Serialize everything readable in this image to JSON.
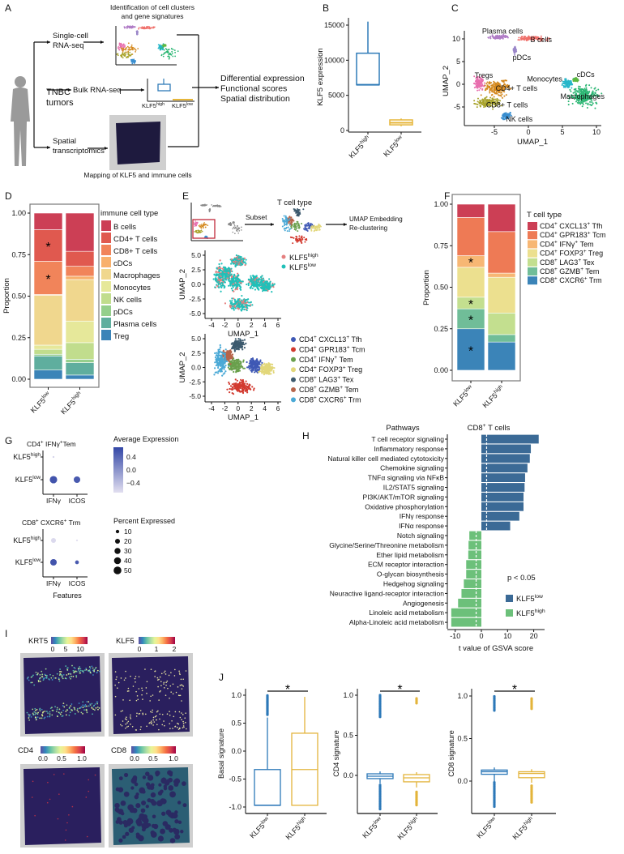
{
  "panel_labels": [
    "A",
    "B",
    "C",
    "D",
    "E",
    "F",
    "G",
    "H",
    "I",
    "J"
  ],
  "schematic": {
    "top_caption": [
      "Identification of cell clusters",
      "and gene signatures"
    ],
    "source": [
      "TNBC",
      "tumors"
    ],
    "scrna": [
      "Single-cell",
      "RNA-seq"
    ],
    "bulk": "Bulk RNA-seq",
    "spatial": [
      "Spatial",
      "transcriptomics"
    ],
    "outputs": [
      "Differential expression",
      "Functional scores",
      "Spatial distribution"
    ],
    "bottom_caption": "Mapping of KLF5 and immune cells",
    "bulk_labels": [
      [
        "KLF5",
        "high"
      ],
      [
        "KLF5",
        "low"
      ]
    ],
    "icons": [
      "person-silhouette-icon",
      "umap-thumbnail",
      "boxplot-thumbnail",
      "spatial-slide-thumbnail"
    ]
  },
  "chart_data": [
    {
      "type": "box",
      "ylabel": "KLF5 expression",
      "yticks": [
        "0",
        "5000",
        "10000",
        "15000"
      ],
      "categories": [
        [
          "KLF5",
          "high"
        ],
        [
          "KLF5",
          "low"
        ]
      ],
      "colors": [
        "#2f7bb8",
        "#e6b63a"
      ],
      "boxes": [
        {
          "min": 6500,
          "q1": 6500,
          "median": 6500,
          "q3": 11000,
          "max": 15500
        },
        {
          "min": 600,
          "q1": 800,
          "median": 1100,
          "q3": 1500,
          "max": 1700
        }
      ]
    },
    {
      "type": "scatter",
      "xlabel": "UMAP_1",
      "ylabel": "UMAP_2",
      "xticks": [
        "-5",
        "0",
        "5",
        "10"
      ],
      "yticks": [
        "-5",
        "0",
        "5",
        "10"
      ],
      "clusters": [
        {
          "name": "Plasma cells",
          "color": "#b07cc6",
          "center": [
            -4.3,
            10.4
          ],
          "spread": [
            1.2,
            0.35
          ]
        },
        {
          "name": "B cells",
          "color": "#ef6f6a",
          "center": [
            0.6,
            10.1
          ],
          "spread": [
            1.8,
            0.4
          ]
        },
        {
          "name": "pDCs",
          "color": "#9b87c9",
          "center": [
            -2.0,
            7.6
          ],
          "spread": [
            0.15,
            0.7
          ]
        },
        {
          "name": "Tregs",
          "color": "#e86fae",
          "center": [
            -7.2,
            0.3
          ],
          "spread": [
            0.6,
            1.1
          ]
        },
        {
          "name": "CD4+ T cells",
          "color": "#d4891f",
          "center": [
            -4.6,
            -0.8
          ],
          "spread": [
            1.6,
            1.4
          ]
        },
        {
          "name": "CD8+ T cells",
          "color": "#a8a32b",
          "center": [
            -6.0,
            -4.0
          ],
          "spread": [
            1.5,
            0.9
          ]
        },
        {
          "name": "NK cells",
          "color": "#3a8fd0",
          "center": [
            -3.3,
            -7.0
          ],
          "spread": [
            0.5,
            0.6
          ]
        },
        {
          "name": "Monocytes",
          "color": "#25b6c9",
          "center": [
            5.8,
            0.2
          ],
          "spread": [
            0.6,
            0.8
          ]
        },
        {
          "name": "cDCs",
          "color": "#5db840",
          "center": [
            7.0,
            1.0
          ],
          "spread": [
            0.3,
            0.3
          ]
        },
        {
          "name": "Macrophages",
          "color": "#2bb673",
          "center": [
            8.2,
            -2.6
          ],
          "spread": [
            1.7,
            1.8
          ]
        }
      ]
    },
    {
      "type": "bar",
      "stacked": true,
      "ylabel": "Proportion",
      "yticks": [
        "0.00",
        "0.25",
        "0.50",
        "0.75",
        "1.00"
      ],
      "categories": [
        [
          "KLF5",
          "low"
        ],
        [
          "KLF5",
          "high"
        ]
      ],
      "legend_title": "immune cell type",
      "series": [
        {
          "name": "Treg",
          "color": "#3b84b8",
          "values": [
            0.055,
            0.025
          ]
        },
        {
          "name": "Plasma cells",
          "color": "#5fae9e",
          "values": [
            0.085,
            0.075
          ]
        },
        {
          "name": "pDCs",
          "color": "#95cf8c",
          "values": [
            0.01,
            0.02
          ]
        },
        {
          "name": "NK cells",
          "color": "#c1dd8d",
          "values": [
            0.03,
            0.1
          ]
        },
        {
          "name": "Monocytes",
          "color": "#e6e89a",
          "values": [
            0.025,
            0.13
          ]
        },
        {
          "name": "Macrophages",
          "color": "#f0d78e",
          "values": [
            0.3,
            0.25
          ]
        },
        {
          "name": "cDCs",
          "color": "#f8b06c",
          "values": [
            0.005,
            0.02
          ]
        },
        {
          "name": "CD8+ T cells",
          "color": "#f1845a",
          "values": [
            0.2,
            0.06
          ]
        },
        {
          "name": "CD4+ T cells",
          "color": "#e0594f",
          "values": [
            0.19,
            0.09
          ]
        },
        {
          "name": "B cells",
          "color": "#cc3f55",
          "values": [
            0.1,
            0.23
          ]
        }
      ],
      "significance": {
        "marker": "*",
        "category": 0,
        "series": [
          "CD8+ T cells",
          "CD4+ T cells"
        ]
      }
    },
    {
      "type": "scatter",
      "title": "T cell type",
      "subset_label": "Subset",
      "reclustering_label": [
        "UMAP Embedding",
        "Re-clustering"
      ],
      "xlabel": "UMAP_1",
      "ylabel": "UMAP_2",
      "xticks": [
        "-4",
        "-2",
        "0",
        "2",
        "4",
        "6"
      ],
      "yticks": [
        "-5.0",
        "-2.5",
        "0.0",
        "2.5",
        "5.0"
      ],
      "groups": [
        {
          "name": [
            "KLF5",
            "high"
          ],
          "color": "#e57f7f",
          "fraction": 0.25
        },
        {
          "name": [
            "KLF5",
            "low"
          ],
          "color": "#20c0b8",
          "fraction": 0.75
        }
      ]
    },
    {
      "type": "scatter",
      "xlabel": "UMAP_1",
      "ylabel": "UMAP_2",
      "xticks": [
        "-4",
        "-2",
        "0",
        "2",
        "4",
        "6"
      ],
      "yticks": [
        "-5.0",
        "-2.5",
        "0.0",
        "2.5",
        "5.0"
      ],
      "clusters": [
        {
          "name": [
            "CD4",
            "+",
            " CXCL13",
            "+",
            " Tfh"
          ],
          "color": "#3f59b5",
          "center": [
            2.6,
            0.4
          ],
          "spread": [
            0.9,
            0.9
          ]
        },
        {
          "name": [
            "CD4",
            "+",
            " GPR183",
            "+",
            " Tcm"
          ],
          "color": "#d23a2f",
          "center": [
            0.4,
            -3.4
          ],
          "spread": [
            1.4,
            0.9
          ]
        },
        {
          "name": [
            "CD4",
            "+",
            " IFNγ",
            "+",
            " Tem"
          ],
          "color": "#6aa04d",
          "center": [
            -0.4,
            0.4
          ],
          "spread": [
            0.9,
            1.0
          ]
        },
        {
          "name": [
            "CD4",
            "+",
            " FOXP3",
            "+",
            " Treg"
          ],
          "color": "#e2d77a",
          "center": [
            4.3,
            -0.2
          ],
          "spread": [
            0.9,
            0.8
          ]
        },
        {
          "name": [
            "CD8",
            "+",
            " LAG3",
            "+",
            " Tex"
          ],
          "color": "#3d5a6e",
          "center": [
            0.0,
            4.0
          ],
          "spread": [
            0.8,
            0.8
          ]
        },
        {
          "name": [
            "CD8",
            "+",
            " GZMB",
            "+",
            " Tem"
          ],
          "color": "#b7654b",
          "center": [
            -1.6,
            2.0
          ],
          "spread": [
            0.6,
            0.8
          ]
        },
        {
          "name": [
            "CD8",
            "+",
            " CXCR6",
            "+",
            " Trm"
          ],
          "color": "#4aa9d6",
          "center": [
            -2.6,
            1.2
          ],
          "spread": [
            0.8,
            1.8
          ]
        }
      ]
    },
    {
      "type": "bar",
      "stacked": true,
      "ylabel": "Proportion",
      "yticks": [
        "0.00",
        "0.25",
        "0.50",
        "0.75",
        "1.00"
      ],
      "categories": [
        [
          "KLF5",
          "low"
        ],
        [
          "KLF5",
          "high"
        ]
      ],
      "legend_title": "T cell type",
      "series": [
        {
          "name": [
            "CD8",
            "+",
            " CXCR6",
            "+",
            " Trm"
          ],
          "color": "#3b84b8",
          "values": [
            0.25,
            0.17
          ]
        },
        {
          "name": [
            "CD8",
            "+",
            " GZMB",
            "+",
            " Tem"
          ],
          "color": "#70bd98",
          "values": [
            0.12,
            0.045
          ]
        },
        {
          "name": [
            "CD8",
            "+",
            " LAG3",
            "+",
            " Tex"
          ],
          "color": "#c3df8f",
          "values": [
            0.07,
            0.13
          ]
        },
        {
          "name": [
            "CD4",
            "+",
            " FOXP3",
            "+",
            " Treg"
          ],
          "color": "#ece08f",
          "values": [
            0.18,
            0.215
          ]
        },
        {
          "name": [
            "CD4",
            "+",
            " IFNγ",
            "+",
            " Tem"
          ],
          "color": "#f7b774",
          "values": [
            0.07,
            0.025
          ]
        },
        {
          "name": [
            "CD4",
            "+",
            " GPR183",
            "+",
            " Tcm"
          ],
          "color": "#ee7a55",
          "values": [
            0.23,
            0.25
          ]
        },
        {
          "name": [
            "CD4",
            "+",
            " CXCL13",
            "+",
            " Tfh"
          ],
          "color": "#cc3f55",
          "values": [
            0.08,
            0.165
          ]
        }
      ],
      "significance": {
        "marker": "*",
        "category": 0,
        "series_index": [
          0,
          1,
          2,
          4
        ]
      }
    },
    {
      "type": "dotplot",
      "xlabel": "Features",
      "features": [
        "IFNγ",
        "ICOS"
      ],
      "rows": [
        [
          "KLF5",
          "high"
        ],
        [
          "KLF5",
          "low"
        ]
      ],
      "color_legend_title": "Average Expression",
      "color_ticks": [
        "0.4",
        "0.0",
        "−0.4"
      ],
      "color_range": [
        -0.6,
        0.6
      ],
      "colors": {
        "high": "#3347a6",
        "low": "#e2dff0"
      },
      "size_legend_title": "Percent Expressed",
      "size_ticks": [
        "10",
        "20",
        "30",
        "40",
        "50"
      ],
      "panels": [
        {
          "title": [
            "CD4",
            "+",
            " IFNγ",
            "+",
            "Tem"
          ],
          "pct": [
            [
              3,
              0
            ],
            [
              45,
              35
            ]
          ],
          "avg": [
            [
              -0.5,
              -0.6
            ],
            [
              0.5,
              0.45
            ]
          ]
        },
        {
          "title": [
            "CD8",
            "+",
            " CXCR6",
            "+",
            " Trm"
          ],
          "pct": [
            [
              20,
              3
            ],
            [
              35,
              12
            ]
          ],
          "avg": [
            [
              -0.55,
              -0.6
            ],
            [
              0.5,
              0.45
            ]
          ]
        }
      ]
    },
    {
      "type": "bar",
      "orientation": "horizontal",
      "title": [
        "CD8",
        "+",
        " T cells"
      ],
      "row_header": "Pathways",
      "xlabel": "t value of GSVA score",
      "xticks": [
        "-10",
        "0",
        "10",
        "20"
      ],
      "threshold": 2,
      "annotation": "p < 0.05",
      "legend": [
        {
          "name": [
            "KLF5",
            "low"
          ],
          "color": "#3b6a96"
        },
        {
          "name": [
            "KLF5",
            "high"
          ],
          "color": "#6cc07a"
        }
      ],
      "categories": [
        "T cell receptor signaling",
        "Inflammatory response",
        "Natural killer cell mediated cytotoxicity",
        "Chemokine signaling",
        "TNFα signaling via NFκB",
        "IL2/STAT5 signaling",
        "PI3K/AKT/mTOR signaling",
        "Oxidative phosphorylation",
        "IFNγ response",
        "IFNα response",
        "Notch signaling",
        "Glycine/Serine/Threonine metabolism",
        "Ether lipid metabolism",
        "ECM receptor interaction",
        "O-glycan biosynthesis",
        "Hedgehog signaling",
        "Neuractive ligand-receptor interaction",
        "Angiogenesis",
        "Linoleic acid metabolism",
        "Alpha-Linoleic acid metabolism"
      ],
      "values": [
        21.9,
        18.9,
        18.5,
        17.6,
        16.7,
        16.5,
        16.1,
        16.1,
        14.5,
        11.0,
        -4.6,
        -4.9,
        -5.0,
        -5.8,
        -5.8,
        -6.7,
        -7.6,
        -8.9,
        -11.5,
        -11.5
      ]
    },
    {
      "type": "heatmap",
      "maps": [
        {
          "gene": "KRT5",
          "ticks": [
            "0",
            "5",
            "10"
          ]
        },
        {
          "gene": "KLF5",
          "ticks": [
            "0",
            "1",
            "2"
          ]
        },
        {
          "gene": "CD4",
          "ticks": [
            "0.0",
            "0.5",
            "1.0"
          ]
        },
        {
          "gene": "CD8",
          "ticks": [
            "0.0",
            "0.5",
            "1.0"
          ]
        }
      ],
      "palette": [
        "#5e4fa2",
        "#3288bd",
        "#66c2a5",
        "#abdda4",
        "#e6f598",
        "#fee08b",
        "#fdae61",
        "#f46d43",
        "#d53e4f",
        "#9e0142"
      ]
    },
    {
      "type": "box",
      "ylabel": "Basal signature",
      "yticks": [
        "-1.0",
        "-0.5",
        "0.0",
        "0.5",
        "1.0"
      ],
      "categories": [
        [
          "KLF5",
          "low"
        ],
        [
          "KLF5",
          "high"
        ]
      ],
      "colors": [
        "#2c78b8",
        "#e3b43b"
      ],
      "significance": "*",
      "boxes": [
        {
          "min": -0.97,
          "q1": -0.97,
          "median": -0.97,
          "q3": -0.33,
          "max": 0.6,
          "outlier_ranges": [
            [
              0.65,
              1.0
            ]
          ]
        },
        {
          "min": -0.97,
          "q1": -0.97,
          "median": -0.33,
          "q3": 0.32,
          "max": 0.97,
          "outlier_ranges": []
        }
      ]
    },
    {
      "type": "box",
      "ylabel": "CD4 signature",
      "yticks": [
        "0.0",
        "0.5",
        "1.0"
      ],
      "categories": [
        [
          "KLF5",
          "low"
        ],
        [
          "KLF5",
          "high"
        ]
      ],
      "colors": [
        "#2c78b8",
        "#e3b43b"
      ],
      "significance": "*",
      "boxes": [
        {
          "min": -0.1,
          "q1": -0.04,
          "median": -0.01,
          "q3": 0.02,
          "max": 0.05,
          "outlier_ranges": [
            [
              -0.42,
              -0.12
            ],
            [
              0.73,
              1.0
            ]
          ]
        },
        {
          "min": -0.15,
          "q1": -0.08,
          "median": -0.03,
          "q3": 0.01,
          "max": 0.04,
          "outlier_ranges": [
            [
              -0.37,
              -0.2
            ],
            [
              0.9,
              0.97
            ]
          ]
        }
      ]
    },
    {
      "type": "box",
      "ylabel": "CD8 signature",
      "yticks": [
        "0.0",
        "0.5",
        "1.0"
      ],
      "categories": [
        [
          "KLF5",
          "low"
        ],
        [
          "KLF5",
          "high"
        ]
      ],
      "colors": [
        "#2c78b8",
        "#e3b43b"
      ],
      "significance": "*",
      "boxes": [
        {
          "min": 0.0,
          "q1": 0.08,
          "median": 0.11,
          "q3": 0.13,
          "max": 0.16,
          "outlier_ranges": [
            [
              -0.3,
              -0.01
            ],
            [
              0.83,
              1.0
            ]
          ]
        },
        {
          "min": -0.02,
          "q1": 0.04,
          "median": 0.09,
          "q3": 0.11,
          "max": 0.14,
          "outlier_ranges": [
            [
              -0.25,
              -0.05
            ],
            [
              0.85,
              0.97
            ]
          ]
        }
      ]
    }
  ]
}
